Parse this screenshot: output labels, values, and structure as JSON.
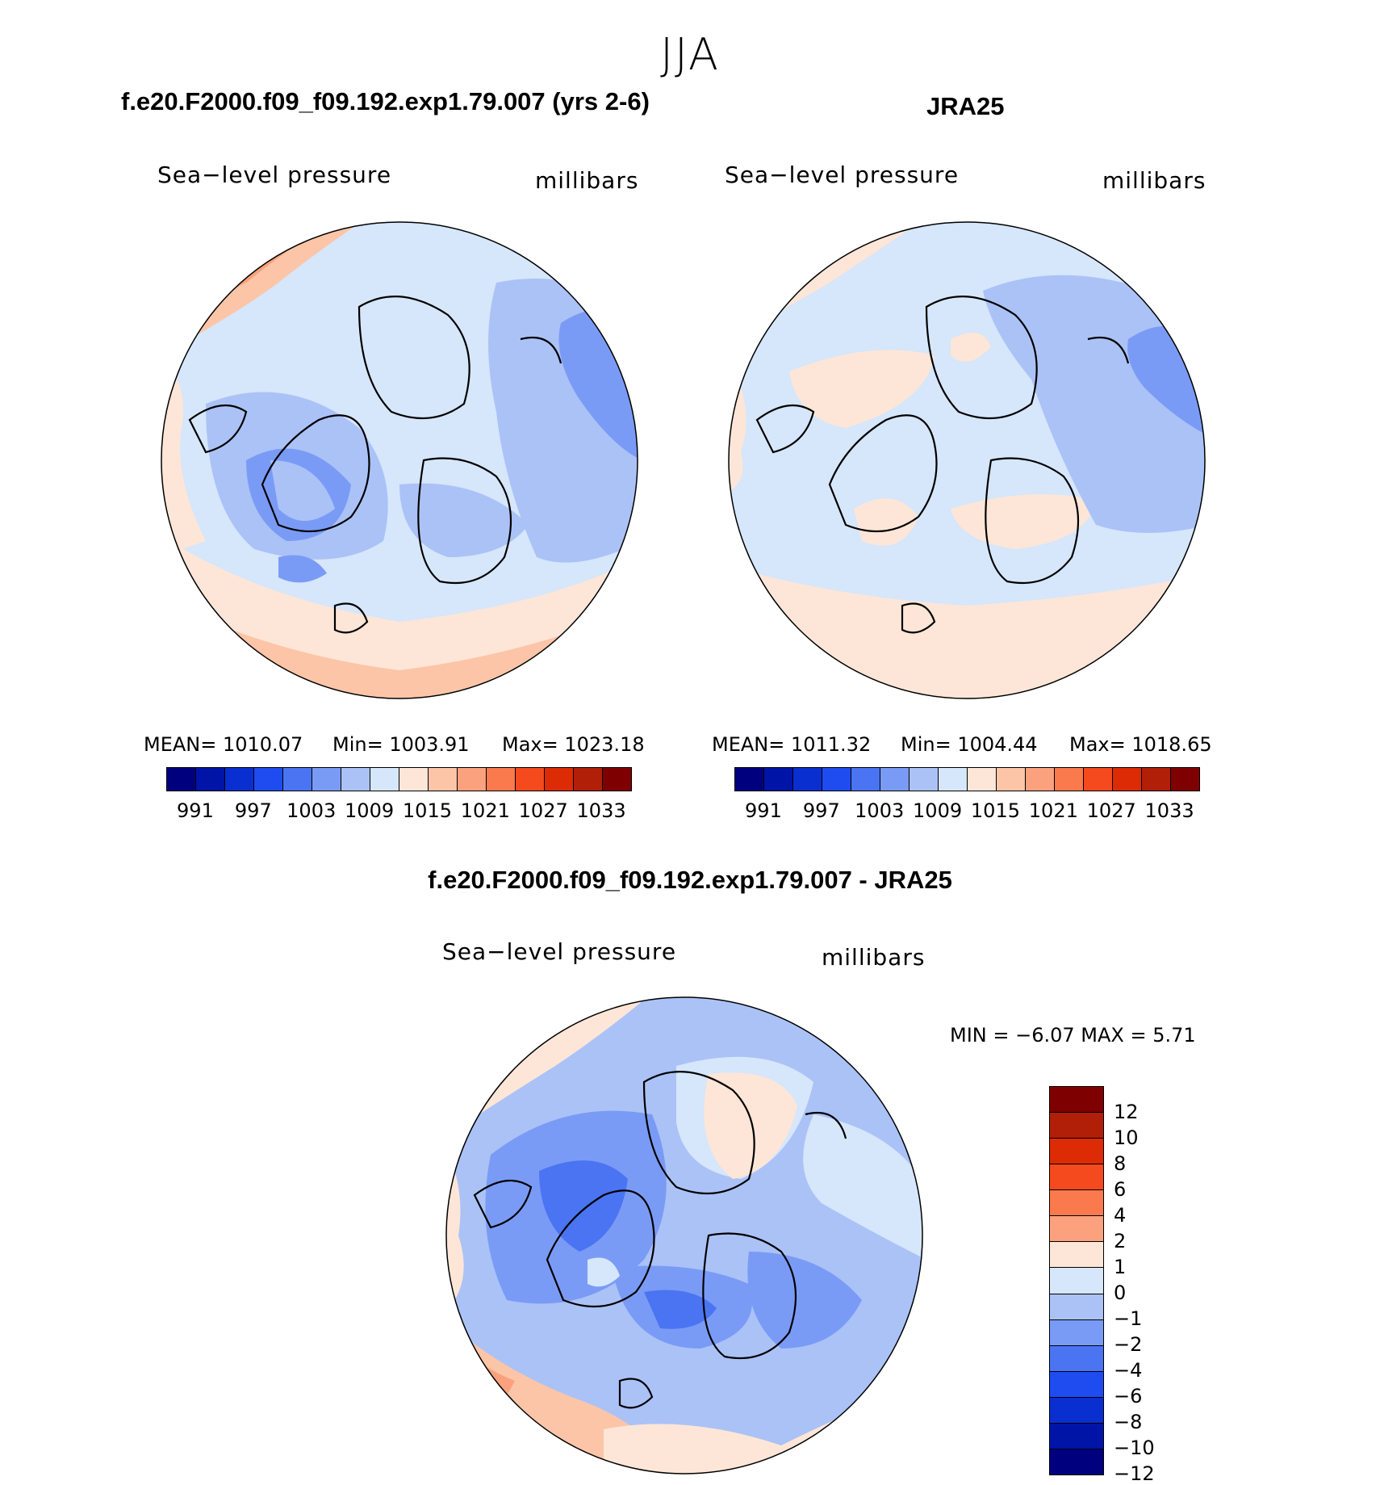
{
  "main_title": "JJA",
  "panels": [
    {
      "case": "f.e20.F2000.f09_f09.192.exp1.79.007 (yrs 2-6)",
      "field": "Sea−level pressure",
      "units": "millibars",
      "mean": "MEAN=  1010.07",
      "min": "Min=  1003.91",
      "max": "Max=  1023.18"
    },
    {
      "case": "JRA25",
      "field": "Sea−level pressure",
      "units": "millibars",
      "mean": "MEAN=  1011.32",
      "min": "Min=  1004.44",
      "max": "Max=  1018.65"
    }
  ],
  "diff_panel": {
    "case": "f.e20.F2000.f09_f09.192.exp1.79.007 - JRA25",
    "field": "Sea−level pressure",
    "units": "millibars",
    "minmax": "MIN =    −6.07  MAX =      5.71"
  },
  "abs_colorbar": {
    "colors": [
      "#00007f",
      "#0014a8",
      "#0a2fd1",
      "#1f4cf0",
      "#4a74f2",
      "#7a9bf5",
      "#abc2f7",
      "#d6e6fb",
      "#fde6d7",
      "#fcc5a8",
      "#fba17e",
      "#fa7a4d",
      "#f54a1e",
      "#dd2b06",
      "#b21f08",
      "#7f0000"
    ],
    "labels": [
      "991",
      "997",
      "1003",
      "1009",
      "1015",
      "1021",
      "1027",
      "1033"
    ]
  },
  "diff_colorbar": {
    "colors": [
      "#7f0000",
      "#b21f08",
      "#dd2b06",
      "#f54a1e",
      "#fa7a4d",
      "#fba17e",
      "#fde6d7",
      "#d6e6fb",
      "#abc2f7",
      "#7a9bf5",
      "#4a74f2",
      "#1f4cf0",
      "#0a2fd1",
      "#0014a8",
      "#00007f"
    ],
    "labels": [
      "12",
      "10",
      "8",
      "6",
      "4",
      "2",
      "1",
      "0",
      "−1",
      "−2",
      "−4",
      "−6",
      "−8",
      "−10",
      "−12"
    ]
  },
  "map_colors": {
    "ocean_base": "#d6e6fb",
    "light_blue": "#abc2f7",
    "mid_blue": "#7a9bf5",
    "blue": "#4a74f2",
    "light_salmon": "#fde6d7",
    "salmon": "#fcc5a8",
    "orange": "#fba17e",
    "deep_orange": "#fa7a4d"
  }
}
